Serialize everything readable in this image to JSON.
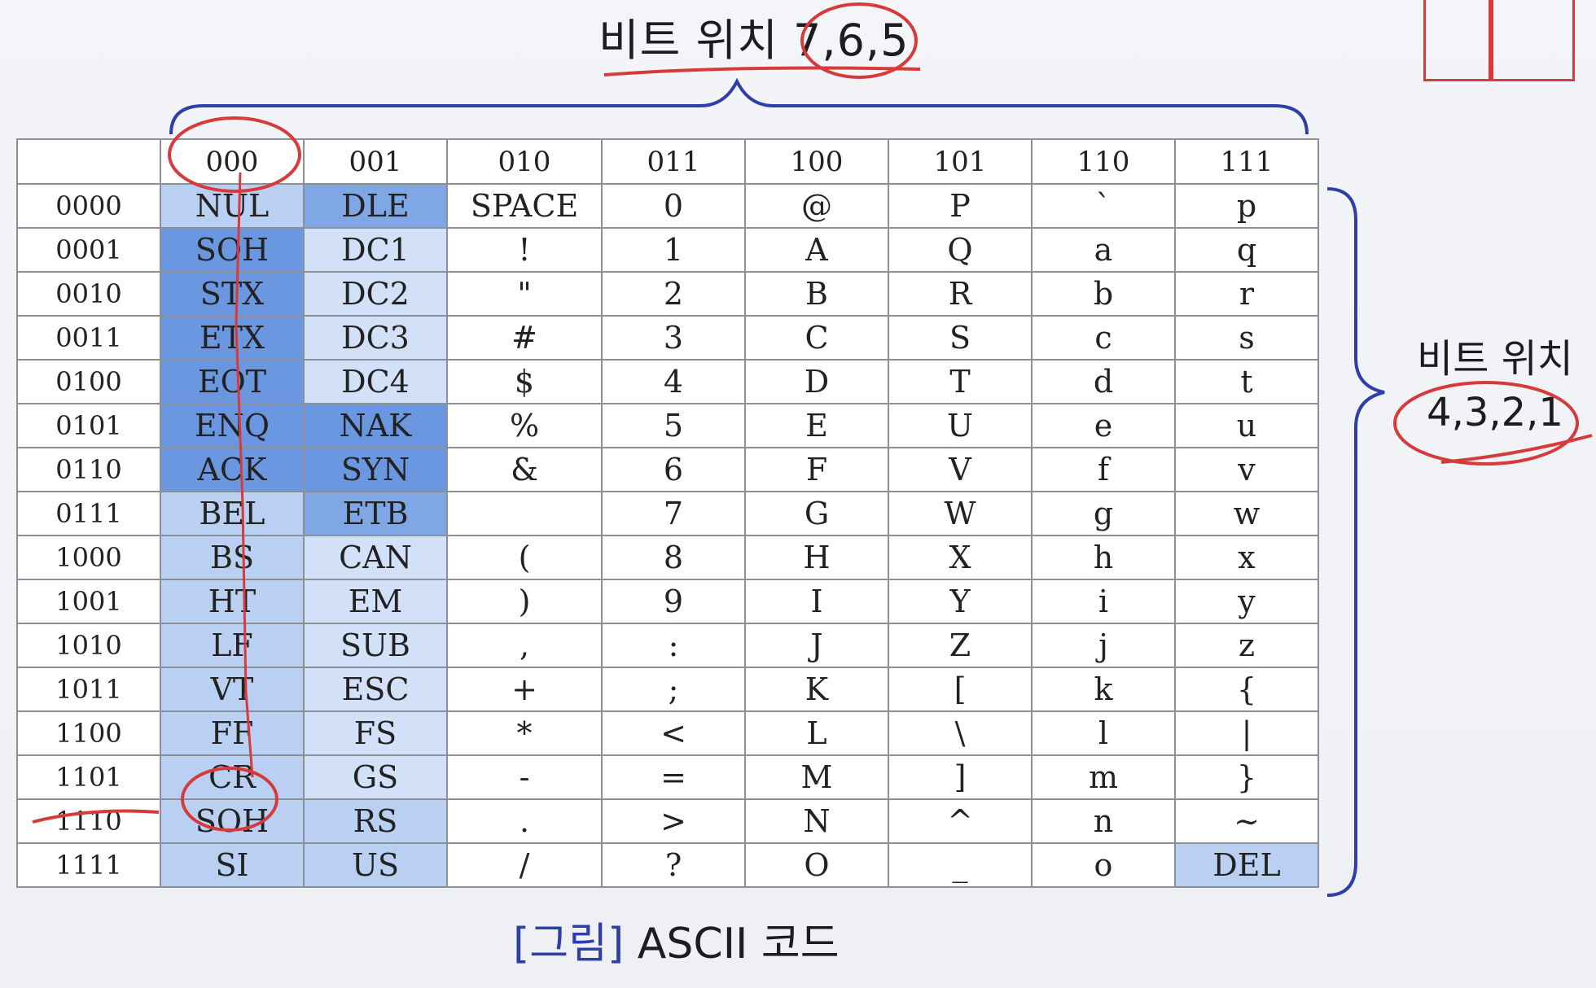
{
  "top_label": "비트 위치 7,6,5",
  "side_label": {
    "line1": "비트 위치",
    "line2": "4,3,2,1"
  },
  "caption": {
    "open": "[",
    "figure": "그림",
    "close": "]",
    "text": " ASCII 코드"
  },
  "col_headers": [
    "",
    "000",
    "001",
    "010",
    "011",
    "100",
    "101",
    "110",
    "111"
  ],
  "rows": [
    [
      "0000",
      "NUL",
      "DLE",
      "SPACE",
      "0",
      "@",
      "P",
      "`",
      "p"
    ],
    [
      "0001",
      "SOH",
      "DC1",
      "!",
      "1",
      "A",
      "Q",
      "a",
      "q"
    ],
    [
      "0010",
      "STX",
      "DC2",
      "\"",
      "2",
      "B",
      "R",
      "b",
      "r"
    ],
    [
      "0011",
      "ETX",
      "DC3",
      "#",
      "3",
      "C",
      "S",
      "c",
      "s"
    ],
    [
      "0100",
      "EOT",
      "DC4",
      "$",
      "4",
      "D",
      "T",
      "d",
      "t"
    ],
    [
      "0101",
      "ENQ",
      "NAK",
      "%",
      "5",
      "E",
      "U",
      "e",
      "u"
    ],
    [
      "0110",
      "ACK",
      "SYN",
      "&",
      "6",
      "F",
      "V",
      "f",
      "v"
    ],
    [
      "0111",
      "BEL",
      "ETB",
      "",
      "7",
      "G",
      "W",
      "g",
      "w"
    ],
    [
      "1000",
      "BS",
      "CAN",
      "(",
      "8",
      "H",
      "X",
      "h",
      "x"
    ],
    [
      "1001",
      "HT",
      "EM",
      ")",
      "9",
      "I",
      "Y",
      "i",
      "y"
    ],
    [
      "1010",
      "LF",
      "SUB",
      ",",
      ":",
      "J",
      "Z",
      "j",
      "z"
    ],
    [
      "1011",
      "VT",
      "ESC",
      "+",
      ";",
      "K",
      "[",
      "k",
      "{"
    ],
    [
      "1100",
      "FF",
      "FS",
      "*",
      "<",
      "L",
      "\\",
      "l",
      "|"
    ],
    [
      "1101",
      "CR",
      "GS",
      "-",
      "=",
      "M",
      "]",
      "m",
      "}"
    ],
    [
      "1110",
      "SOH",
      "RS",
      ".",
      ">",
      "N",
      "^",
      "n",
      "~"
    ],
    [
      "1111",
      "SI",
      "US",
      "/",
      "?",
      "O",
      "_",
      "o",
      "DEL"
    ]
  ],
  "colors": {
    "accent_blue": "#2f3fa8",
    "annotation_red": "#d73a3a",
    "highlight_dark": "#6b97e0",
    "highlight_light": "#d2e1f7"
  }
}
